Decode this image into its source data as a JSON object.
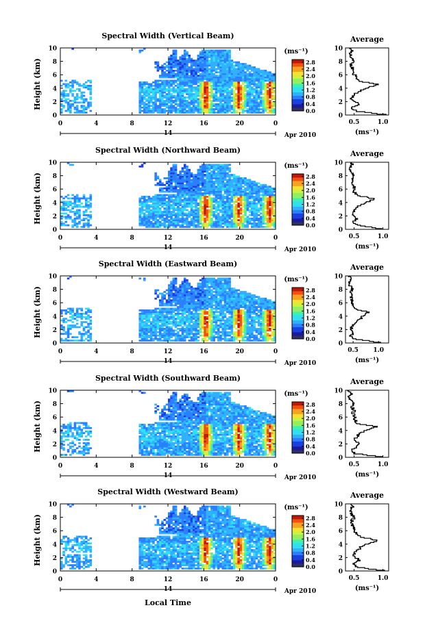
{
  "colors": {
    "colormap": [
      "#303060",
      "#1a1aa0",
      "#1a40e0",
      "#2a80ff",
      "#30b0ff",
      "#30e0f0",
      "#40f0b0",
      "#90f060",
      "#d0f040",
      "#f8e030",
      "#f8a020",
      "#f05010",
      "#c01808"
    ],
    "axis": "#000000"
  },
  "chart_data": [
    {
      "type": "heatmap",
      "title": "Spectral Width (Vertical Beam)",
      "ylabel": "Height (km)",
      "ylim": [
        0,
        10
      ],
      "yticks": [
        "0",
        "2",
        "4",
        "6",
        "8",
        "10"
      ],
      "xlim": [
        0,
        24
      ],
      "xticks": [
        "0",
        "4",
        "8",
        "12",
        "16",
        "20",
        "0"
      ],
      "date_label": "14",
      "month_label": "Apr 2010",
      "colorbar": {
        "unit": "(ms⁻¹)",
        "ticks": [
          "0.0",
          "0.4",
          "0.8",
          "1.2",
          "1.6",
          "2.0",
          "2.4",
          "2.8"
        ]
      },
      "profile": {
        "title": "Average",
        "xticks": [
          "0.5",
          "1.0"
        ],
        "xlabel": "(ms⁻¹)",
        "xlim": [
          0.35,
          1.1
        ],
        "heights": [
          0,
          0.5,
          1,
          1.5,
          2,
          2.5,
          3,
          3.5,
          4,
          4.5,
          5,
          5.5,
          6,
          6.5,
          7,
          7.5,
          8,
          8.5,
          9,
          9.5,
          10
        ],
        "values": [
          1.05,
          0.55,
          0.45,
          0.6,
          0.48,
          0.45,
          0.5,
          0.6,
          0.75,
          0.9,
          0.6,
          0.55,
          0.5,
          0.48,
          0.46,
          0.45,
          0.5,
          0.45,
          0.42,
          0.48,
          0.4
        ]
      }
    },
    {
      "type": "heatmap",
      "title": "Spectral Width (Northward Beam)",
      "ylabel": "Height (km)",
      "ylim": [
        0,
        10
      ],
      "yticks": [
        "0",
        "2",
        "4",
        "6",
        "8",
        "10"
      ],
      "xlim": [
        0,
        24
      ],
      "xticks": [
        "0",
        "4",
        "8",
        "12",
        "16",
        "20",
        "0"
      ],
      "date_label": "14",
      "month_label": "Apr 2010",
      "colorbar": {
        "unit": "(ms⁻¹)",
        "ticks": [
          "0.0",
          "0.4",
          "0.8",
          "1.2",
          "1.6",
          "2.0",
          "2.4",
          "2.8"
        ]
      },
      "profile": {
        "title": "Average",
        "xticks": [
          "0.5",
          "1.0"
        ],
        "xlabel": "(ms⁻¹)",
        "xlim": [
          0.35,
          1.1
        ],
        "heights": [
          0,
          0.5,
          1,
          1.5,
          2,
          2.5,
          3,
          3.5,
          4,
          4.5,
          5,
          5.5,
          6,
          6.5,
          7,
          7.5,
          8,
          8.5,
          9,
          9.5,
          10
        ],
        "values": [
          1.0,
          0.6,
          0.48,
          0.55,
          0.5,
          0.48,
          0.52,
          0.6,
          0.72,
          0.85,
          0.55,
          0.5,
          0.52,
          0.48,
          0.45,
          0.47,
          0.5,
          0.46,
          0.43,
          0.47,
          0.42
        ]
      }
    },
    {
      "type": "heatmap",
      "title": "Spectral Width (Eastward Beam)",
      "ylabel": "Height (km)",
      "ylim": [
        0,
        10
      ],
      "yticks": [
        "0",
        "2",
        "4",
        "6",
        "8",
        "10"
      ],
      "xlim": [
        0,
        24
      ],
      "xticks": [
        "0",
        "4",
        "8",
        "12",
        "16",
        "20",
        "0"
      ],
      "date_label": "14",
      "month_label": "Apr 2010",
      "colorbar": {
        "unit": "(ms⁻¹)",
        "ticks": [
          "0.0",
          "0.4",
          "0.8",
          "1.2",
          "1.6",
          "2.0",
          "2.4",
          "2.8"
        ]
      },
      "profile": {
        "title": "Average",
        "xticks": [
          "0.5",
          "1.0"
        ],
        "xlabel": "(ms⁻¹)",
        "xlim": [
          0.35,
          1.2
        ],
        "heights": [
          0,
          0.5,
          1,
          1.5,
          2,
          2.5,
          3,
          3.5,
          4,
          4.5,
          5,
          5.5,
          6,
          6.5,
          7,
          7.5,
          8,
          8.5,
          9,
          9.5,
          10
        ],
        "values": [
          1.05,
          0.55,
          0.45,
          0.5,
          0.45,
          0.5,
          0.55,
          0.65,
          0.7,
          0.8,
          0.55,
          0.5,
          0.48,
          0.46,
          0.47,
          0.45,
          0.48,
          0.44,
          0.42,
          0.46,
          0.4
        ]
      }
    },
    {
      "type": "heatmap",
      "title": "Spectral Width (Southward Beam)",
      "ylabel": "Height (km)",
      "ylim": [
        0,
        10
      ],
      "yticks": [
        "0",
        "2",
        "4",
        "6",
        "8",
        "10"
      ],
      "xlim": [
        0,
        24
      ],
      "xticks": [
        "0",
        "4",
        "8",
        "12",
        "16",
        "20",
        "0"
      ],
      "date_label": "14",
      "month_label": "Apr 2010",
      "colorbar": {
        "unit": "(ms⁻¹)",
        "ticks": [
          "0.0",
          "0.4",
          "0.8",
          "1.2",
          "1.6",
          "2.0",
          "2.4",
          "2.8"
        ]
      },
      "profile": {
        "title": "Average",
        "xticks": [
          "0.5",
          "1.0"
        ],
        "xlabel": "(ms⁻¹)",
        "xlim": [
          0.35,
          1.1
        ],
        "heights": [
          0,
          0.5,
          1,
          1.5,
          2,
          2.5,
          3,
          3.5,
          4,
          4.5,
          5,
          5.5,
          6,
          6.5,
          7,
          7.5,
          8,
          8.5,
          9,
          9.5,
          10
        ],
        "values": [
          1.0,
          0.5,
          0.45,
          0.55,
          0.6,
          0.5,
          0.55,
          0.6,
          0.7,
          0.88,
          0.55,
          0.52,
          0.5,
          0.48,
          0.5,
          0.45,
          0.48,
          0.45,
          0.42,
          0.46,
          0.4
        ]
      }
    },
    {
      "type": "heatmap",
      "title": "Spectral Width (Westward Beam)",
      "ylabel": "Height (km)",
      "ylim": [
        0,
        10
      ],
      "yticks": [
        "0",
        "2",
        "4",
        "6",
        "8",
        "10"
      ],
      "xlim": [
        0,
        24
      ],
      "xticks": [
        "0",
        "4",
        "8",
        "12",
        "16",
        "20",
        "0"
      ],
      "date_label": "14",
      "month_label": "Apr 2010",
      "xlabel": "Local Time",
      "colorbar": {
        "unit": "(ms⁻¹)",
        "ticks": [
          "0.0",
          "0.4",
          "0.8",
          "1.2",
          "1.6",
          "2.0",
          "2.4",
          "2.8"
        ]
      },
      "profile": {
        "title": "Average",
        "xticks": [
          "0.5",
          "1.0"
        ],
        "xlabel": "(ms⁻¹)",
        "xlim": [
          0.35,
          1.1
        ],
        "heights": [
          0,
          0.5,
          1,
          1.5,
          2,
          2.5,
          3,
          3.5,
          4,
          4.5,
          5,
          5.5,
          6,
          6.5,
          7,
          7.5,
          8,
          8.5,
          9,
          9.5,
          10
        ],
        "values": [
          1.0,
          0.55,
          0.5,
          0.6,
          0.52,
          0.5,
          0.55,
          0.62,
          0.75,
          0.92,
          0.6,
          0.55,
          0.5,
          0.48,
          0.46,
          0.47,
          0.5,
          0.45,
          0.42,
          0.47,
          0.4
        ]
      }
    }
  ]
}
